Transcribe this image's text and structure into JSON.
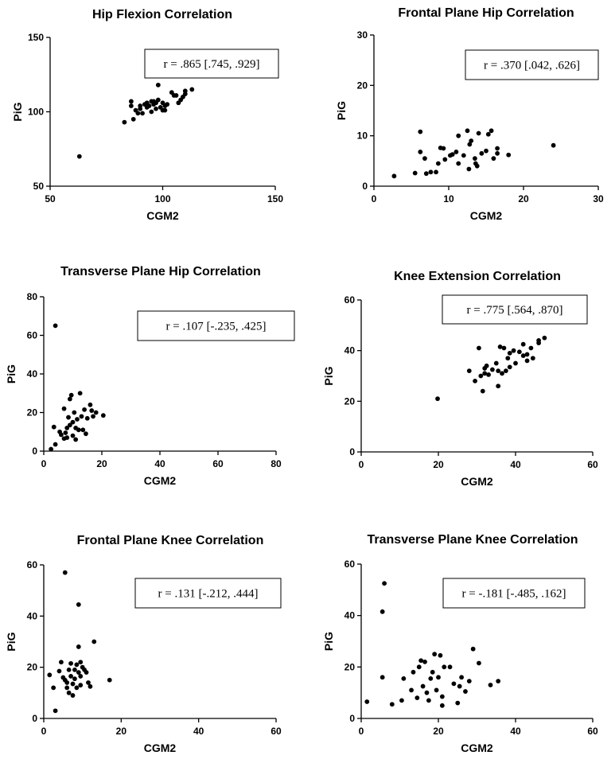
{
  "chart_data": [
    {
      "type": "scatter",
      "title": "Hip Flexion Correlation",
      "xlabel": "CGM2",
      "ylabel": "PiG",
      "xlim": [
        50,
        150
      ],
      "ylim": [
        50,
        150
      ],
      "xticks": [
        50,
        100,
        150
      ],
      "yticks": [
        50,
        100,
        150
      ],
      "annotation": "r = .865 [.745, .929]",
      "points": [
        [
          63,
          70
        ],
        [
          83,
          93
        ],
        [
          86,
          107
        ],
        [
          86,
          104
        ],
        [
          87,
          95
        ],
        [
          88,
          101
        ],
        [
          89,
          99
        ],
        [
          90,
          104
        ],
        [
          90,
          102
        ],
        [
          91,
          99
        ],
        [
          92,
          105
        ],
        [
          93,
          103
        ],
        [
          93,
          106
        ],
        [
          94,
          104
        ],
        [
          95,
          100
        ],
        [
          95,
          107
        ],
        [
          96,
          105
        ],
        [
          96,
          107
        ],
        [
          97,
          102
        ],
        [
          97,
          106
        ],
        [
          98,
          108
        ],
        [
          98,
          118
        ],
        [
          99,
          103
        ],
        [
          100,
          106
        ],
        [
          100,
          101
        ],
        [
          101,
          104
        ],
        [
          101,
          101
        ],
        [
          102,
          105
        ],
        [
          104,
          113
        ],
        [
          105,
          111
        ],
        [
          106,
          111
        ],
        [
          107,
          106
        ],
        [
          108,
          108
        ],
        [
          109,
          110
        ],
        [
          110,
          114
        ],
        [
          110,
          112
        ],
        [
          113,
          115
        ]
      ]
    },
    {
      "type": "scatter",
      "title": "Frontal Plane Hip Correlation",
      "xlabel": "CGM2",
      "ylabel": "PiG",
      "xlim": [
        0,
        30
      ],
      "ylim": [
        0,
        30
      ],
      "xticks": [
        0,
        10,
        20,
        30
      ],
      "yticks": [
        0,
        10,
        20,
        30
      ],
      "annotation": "r = .370 [.042, .626]",
      "points": [
        [
          2.7,
          2.0
        ],
        [
          5.5,
          2.6
        ],
        [
          6.2,
          10.8
        ],
        [
          6.2,
          6.8
        ],
        [
          6.8,
          5.5
        ],
        [
          7.0,
          2.5
        ],
        [
          7.6,
          2.8
        ],
        [
          8.3,
          2.8
        ],
        [
          8.6,
          4.5
        ],
        [
          8.9,
          7.6
        ],
        [
          9.3,
          7.5
        ],
        [
          9.5,
          5.3
        ],
        [
          10.2,
          6.1
        ],
        [
          10.5,
          6.3
        ],
        [
          11.0,
          6.8
        ],
        [
          11.3,
          10.0
        ],
        [
          11.3,
          4.5
        ],
        [
          12.0,
          6.1
        ],
        [
          12.5,
          11.0
        ],
        [
          12.7,
          3.4
        ],
        [
          12.8,
          8.3
        ],
        [
          13.0,
          9.0
        ],
        [
          13.5,
          5.5
        ],
        [
          13.6,
          4.5
        ],
        [
          13.8,
          4.0
        ],
        [
          14.0,
          10.5
        ],
        [
          14.4,
          6.5
        ],
        [
          15.0,
          7.0
        ],
        [
          15.3,
          10.3
        ],
        [
          15.7,
          11.0
        ],
        [
          16.0,
          5.5
        ],
        [
          16.5,
          6.5
        ],
        [
          16.5,
          7.5
        ],
        [
          18.0,
          6.2
        ],
        [
          24.0,
          8.1
        ]
      ]
    },
    {
      "type": "scatter",
      "title": "Transverse Plane Hip Correlation",
      "xlabel": "CGM2",
      "ylabel": "PiG",
      "xlim": [
        0,
        80
      ],
      "ylim": [
        0,
        80
      ],
      "xticks": [
        0,
        20,
        40,
        60,
        80
      ],
      "yticks": [
        0,
        20,
        40,
        60,
        80
      ],
      "annotation": "r = .107 [-.235, .425]",
      "points": [
        [
          2.5,
          1.0
        ],
        [
          3.5,
          12.5
        ],
        [
          4.0,
          65.0
        ],
        [
          4.0,
          3.5
        ],
        [
          5.5,
          10.0
        ],
        [
          6.0,
          8.5
        ],
        [
          7.0,
          22.0
        ],
        [
          7.0,
          6.5
        ],
        [
          7.5,
          9.5
        ],
        [
          8.0,
          12.0
        ],
        [
          8.0,
          7.0
        ],
        [
          8.5,
          17.5
        ],
        [
          9.0,
          13.5
        ],
        [
          9.0,
          27.0
        ],
        [
          9.5,
          29.0
        ],
        [
          10.0,
          15.0
        ],
        [
          10.0,
          8.0
        ],
        [
          10.5,
          20.0
        ],
        [
          11.0,
          12.0
        ],
        [
          11.0,
          6.0
        ],
        [
          11.5,
          16.5
        ],
        [
          12.0,
          11.0
        ],
        [
          12.5,
          30.0
        ],
        [
          13.0,
          18.0
        ],
        [
          13.5,
          11.0
        ],
        [
          14.0,
          21.5
        ],
        [
          14.5,
          9.0
        ],
        [
          15.0,
          17.0
        ],
        [
          16.0,
          24.0
        ],
        [
          16.5,
          21.0
        ],
        [
          17.0,
          18.0
        ],
        [
          18.0,
          20.0
        ],
        [
          20.5,
          18.5
        ]
      ]
    },
    {
      "type": "scatter",
      "title": "Knee Extension Correlation",
      "xlabel": "CGM2",
      "ylabel": "PiG",
      "xlim": [
        0,
        60
      ],
      "ylim": [
        0,
        60
      ],
      "xticks": [
        0,
        20,
        40,
        60
      ],
      "yticks": [
        0,
        20,
        40,
        60
      ],
      "annotation": "r = .775 [.564, .870]",
      "points": [
        [
          19.8,
          21.0
        ],
        [
          28.0,
          32.0
        ],
        [
          29.5,
          28.0
        ],
        [
          30.5,
          41.0
        ],
        [
          31.0,
          30.0
        ],
        [
          31.5,
          24.0
        ],
        [
          32.0,
          33.0
        ],
        [
          32.0,
          31.0
        ],
        [
          32.5,
          34.0
        ],
        [
          33.0,
          30.5
        ],
        [
          34.0,
          32.5
        ],
        [
          35.0,
          35.0
        ],
        [
          35.5,
          32.0
        ],
        [
          35.5,
          26.0
        ],
        [
          36.0,
          41.5
        ],
        [
          36.5,
          31.0
        ],
        [
          37.0,
          41.0
        ],
        [
          37.5,
          32.0
        ],
        [
          38.0,
          37.0
        ],
        [
          38.5,
          39.0
        ],
        [
          38.5,
          33.5
        ],
        [
          39.5,
          40.0
        ],
        [
          40.0,
          35.0
        ],
        [
          41.0,
          39.5
        ],
        [
          42.0,
          38.0
        ],
        [
          42.0,
          42.5
        ],
        [
          43.0,
          38.5
        ],
        [
          43.0,
          36.0
        ],
        [
          44.0,
          41.0
        ],
        [
          44.5,
          37.0
        ],
        [
          46.0,
          44.0
        ],
        [
          46.0,
          43.0
        ],
        [
          47.5,
          45.0
        ]
      ]
    },
    {
      "type": "scatter",
      "title": "Frontal Plane Knee Correlation",
      "xlabel": "CGM2",
      "ylabel": "PiG",
      "xlim": [
        0,
        60
      ],
      "ylim": [
        0,
        60
      ],
      "xticks": [
        0,
        20,
        40,
        60
      ],
      "yticks": [
        0,
        20,
        40,
        60
      ],
      "annotation": "r = .131 [-.212, .444]",
      "points": [
        [
          1.5,
          17.0
        ],
        [
          2.5,
          12.0
        ],
        [
          3.0,
          3.0
        ],
        [
          4.0,
          18.5
        ],
        [
          4.5,
          22.0
        ],
        [
          5.0,
          16.0
        ],
        [
          5.5,
          57.0
        ],
        [
          5.5,
          15.0
        ],
        [
          6.0,
          14.0
        ],
        [
          6.0,
          12.0
        ],
        [
          6.5,
          19.0
        ],
        [
          6.5,
          10.0
        ],
        [
          7.0,
          16.5
        ],
        [
          7.0,
          21.5
        ],
        [
          7.5,
          13.5
        ],
        [
          7.5,
          9.0
        ],
        [
          8.0,
          15.5
        ],
        [
          8.0,
          19.0
        ],
        [
          8.5,
          21.0
        ],
        [
          8.5,
          12.0
        ],
        [
          9.0,
          44.5
        ],
        [
          9.0,
          28.0
        ],
        [
          9.0,
          18.0
        ],
        [
          9.5,
          22.0
        ],
        [
          9.5,
          16.5
        ],
        [
          9.5,
          13.0
        ],
        [
          10.0,
          20.0
        ],
        [
          10.5,
          19.0
        ],
        [
          11.0,
          18.0
        ],
        [
          11.5,
          14.0
        ],
        [
          12.0,
          12.5
        ],
        [
          13.0,
          30.0
        ],
        [
          17.0,
          15.0
        ]
      ]
    },
    {
      "type": "scatter",
      "title": "Transverse Plane Knee Correlation",
      "xlabel": "CGM2",
      "ylabel": "PiG",
      "xlim": [
        0,
        60
      ],
      "ylim": [
        0,
        60
      ],
      "xticks": [
        0,
        20,
        40,
        60
      ],
      "yticks": [
        0,
        20,
        40,
        60
      ],
      "annotation": "r = -.181 [-.485, .162]",
      "points": [
        [
          1.5,
          6.5
        ],
        [
          5.5,
          16.0
        ],
        [
          5.5,
          41.5
        ],
        [
          6.0,
          52.5
        ],
        [
          8.0,
          5.5
        ],
        [
          10.5,
          7.0
        ],
        [
          11.0,
          15.5
        ],
        [
          13.0,
          11.0
        ],
        [
          13.5,
          18.0
        ],
        [
          14.5,
          8.0
        ],
        [
          15.0,
          20.0
        ],
        [
          15.5,
          22.5
        ],
        [
          16.0,
          12.5
        ],
        [
          16.5,
          22.0
        ],
        [
          17.0,
          10.0
        ],
        [
          17.5,
          7.0
        ],
        [
          18.0,
          15.5
        ],
        [
          18.5,
          18.0
        ],
        [
          19.0,
          25.0
        ],
        [
          19.5,
          11.0
        ],
        [
          20.0,
          16.0
        ],
        [
          20.5,
          24.5
        ],
        [
          21.0,
          5.0
        ],
        [
          21.0,
          8.5
        ],
        [
          21.5,
          20.0
        ],
        [
          23.0,
          20.0
        ],
        [
          24.0,
          13.5
        ],
        [
          25.0,
          6.0
        ],
        [
          25.5,
          12.5
        ],
        [
          26.0,
          16.0
        ],
        [
          27.0,
          10.5
        ],
        [
          28.0,
          14.5
        ],
        [
          29.0,
          27.0
        ],
        [
          30.5,
          21.5
        ],
        [
          33.5,
          13.0
        ],
        [
          35.5,
          14.5
        ]
      ]
    }
  ]
}
